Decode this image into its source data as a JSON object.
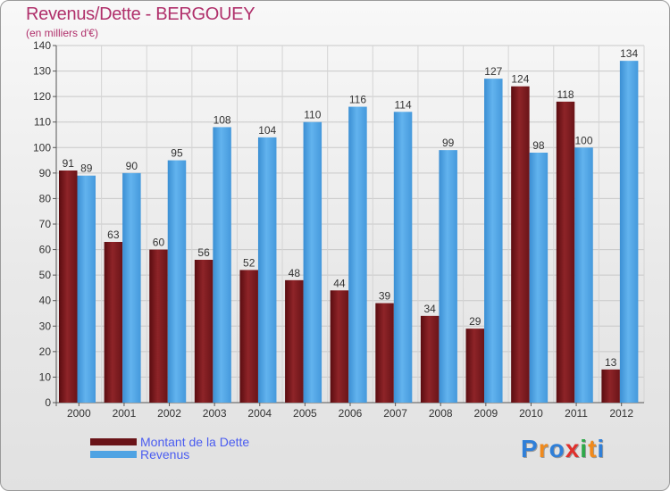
{
  "title": "Revenus/Dette - BERGOUEY",
  "subtitle": "(en milliers d'€)",
  "colors": {
    "dette": "#7a1a1e",
    "dette_light": "#9a2a2e",
    "revenus": "#4fa3e3",
    "revenus_light": "#6ab8f0",
    "title": "#b0306b",
    "legend_text": "#4a5cf0"
  },
  "legend": {
    "dette_label": "Montant de la Dette",
    "revenus_label": "Revenus"
  },
  "logo": {
    "letters": [
      "P",
      "r",
      "o",
      "x",
      "i",
      "t",
      "i"
    ],
    "colors": [
      "#2f7fd8",
      "#f08a1c",
      "#2f7fd8",
      "#e0302c",
      "#2fa84a",
      "#f08a1c",
      "#2f7fd8"
    ]
  },
  "chart_data": {
    "type": "bar",
    "categories": [
      "2000",
      "2001",
      "2002",
      "2003",
      "2004",
      "2005",
      "2006",
      "2007",
      "2008",
      "2009",
      "2010",
      "2011",
      "2012"
    ],
    "series": [
      {
        "name": "Montant de la Dette",
        "values": [
          91,
          63,
          60,
          56,
          52,
          48,
          44,
          39,
          34,
          29,
          124,
          118,
          13
        ]
      },
      {
        "name": "Revenus",
        "values": [
          89,
          90,
          95,
          108,
          104,
          110,
          116,
          114,
          99,
          127,
          98,
          100,
          134
        ]
      }
    ],
    "ylim": [
      0,
      140
    ],
    "yticks": [
      0,
      10,
      20,
      30,
      40,
      50,
      60,
      70,
      80,
      90,
      100,
      110,
      120,
      130,
      140
    ],
    "grid": true,
    "legend_position": "bottom-left"
  }
}
